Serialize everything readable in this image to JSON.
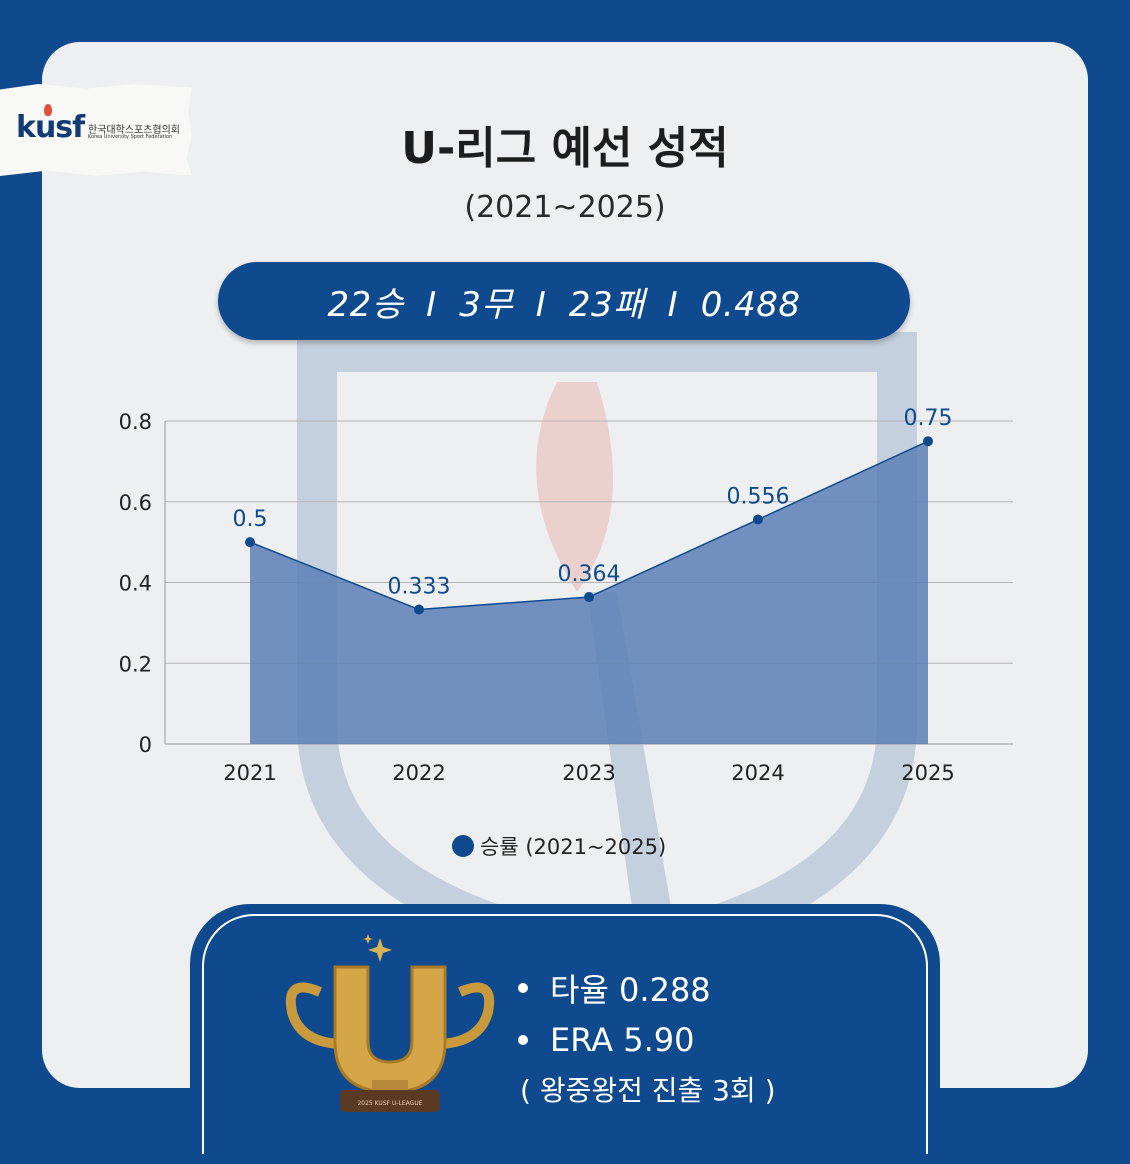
{
  "logo": {
    "mark": "kusf",
    "org_ko": "한국대학스포츠협의회",
    "org_en": "Korea University Sport Federation"
  },
  "title": "U-리그 예선 성적",
  "subtitle": "(2021~2025)",
  "record": "22승  I  3무  I  23패  I  0.488",
  "chart_data": {
    "type": "area",
    "categories": [
      "2021",
      "2022",
      "2023",
      "2024",
      "2025"
    ],
    "series": [
      {
        "name": "승률 (2021~2025)",
        "values": [
          0.5,
          0.333,
          0.364,
          0.556,
          0.75
        ],
        "labels": [
          "0.5",
          "0.333",
          "0.364",
          "0.556",
          "0.75"
        ]
      }
    ],
    "ylim": [
      0,
      0.8
    ],
    "yticks": [
      0,
      0.2,
      0.4,
      0.6,
      0.8
    ],
    "ytick_labels": [
      "0",
      "0.2",
      "0.4",
      "0.6",
      "0.8"
    ],
    "grid": true,
    "legend": "bottom",
    "colors": {
      "fill": "#5a7fb6",
      "line": "#0f4a8f",
      "marker": "#0f4a8f",
      "label": "#0f4a8f"
    }
  },
  "legend_label": "승률 (2021~2025)",
  "stats": {
    "batting": "타율 0.288",
    "era": "ERA 5.90",
    "note": "( 왕중왕전 진출 3회 )"
  },
  "trophy": {
    "base_text": "2025 KUSF U-LEAGUE"
  },
  "colors": {
    "brand": "#0f4a8f",
    "card": "#eeeff0",
    "gold": "#c99a3c"
  }
}
